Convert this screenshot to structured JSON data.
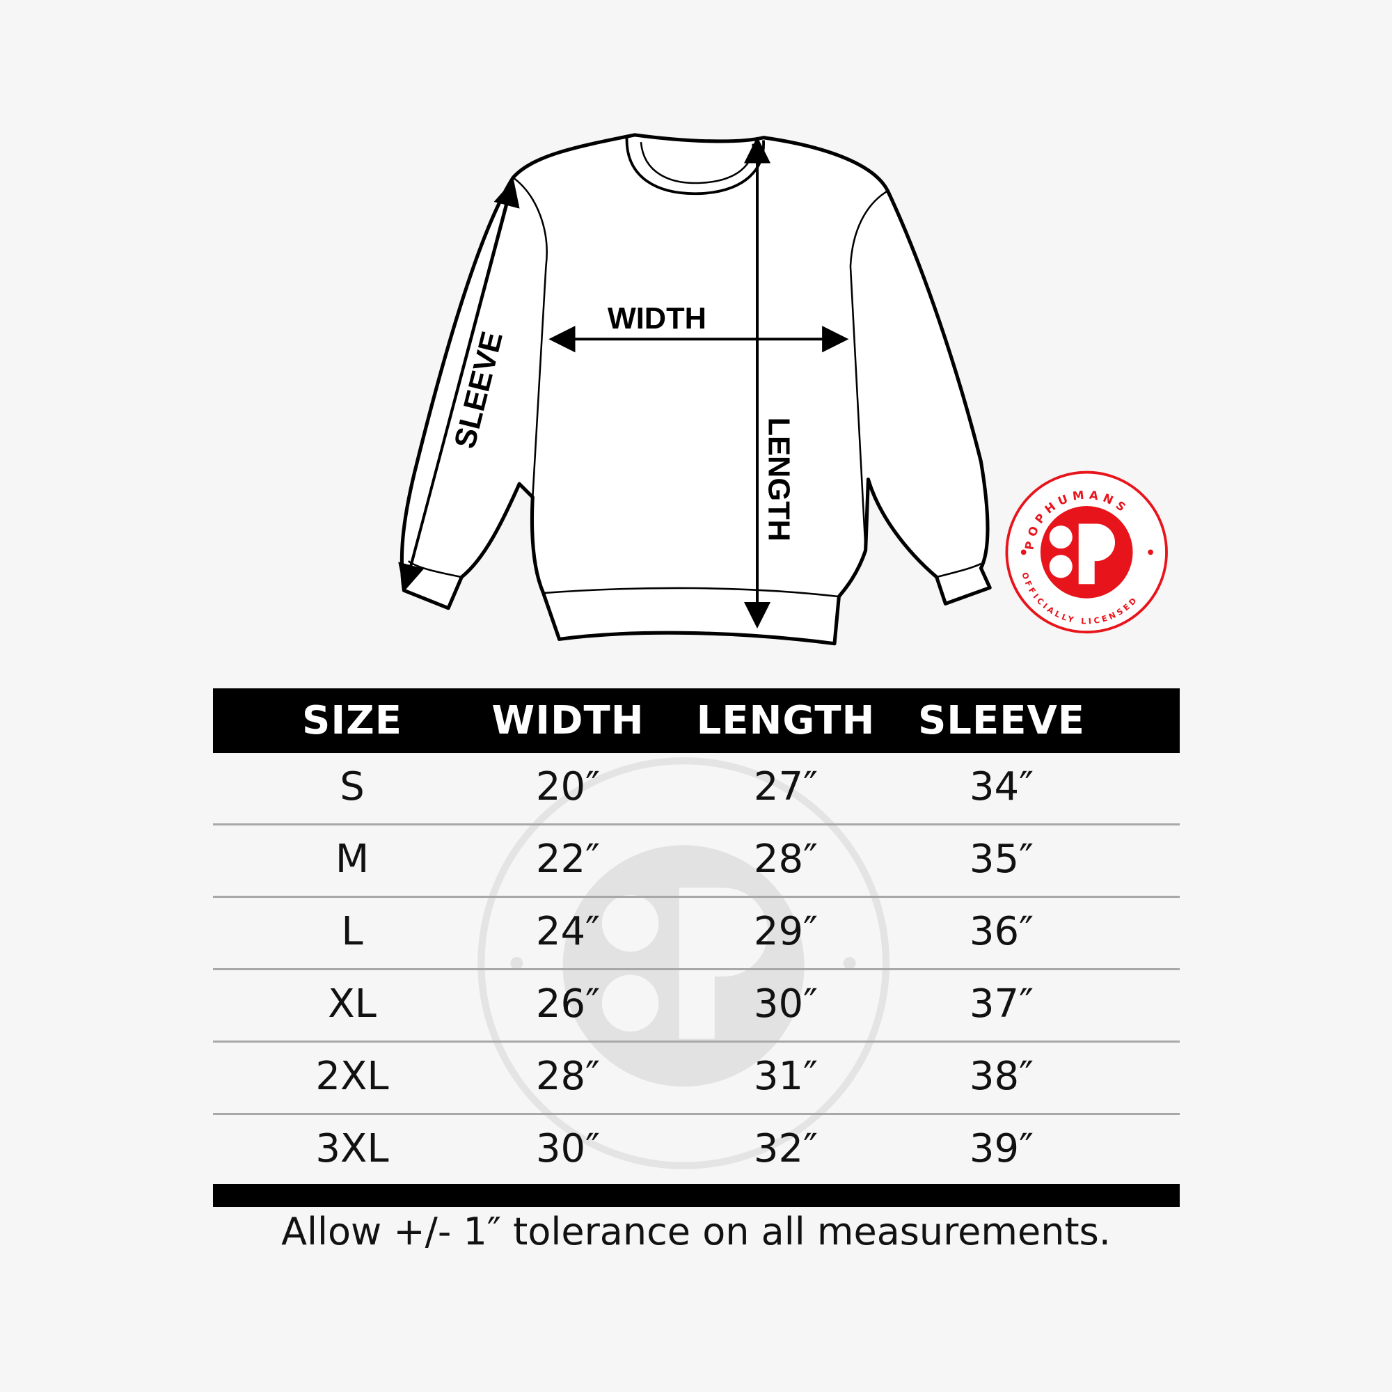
{
  "diagram": {
    "labels": {
      "width": "WIDTH",
      "length": "LENGTH",
      "sleeve": "SLEEVE"
    }
  },
  "badge": {
    "brand": "POPHUMANS",
    "tagline": "OFFICIALLY LICENSED",
    "color": "#e8141b"
  },
  "table": {
    "headers": [
      "SIZE",
      "WIDTH",
      "LENGTH",
      "SLEEVE"
    ],
    "rows": [
      [
        "S",
        "20″",
        "27″",
        "34″"
      ],
      [
        "M",
        "22″",
        "28″",
        "35″"
      ],
      [
        "L",
        "24″",
        "29″",
        "36″"
      ],
      [
        "XL",
        "26″",
        "30″",
        "37″"
      ],
      [
        "2XL",
        "28″",
        "31″",
        "38″"
      ],
      [
        "3XL",
        "30″",
        "32″",
        "39″"
      ]
    ]
  },
  "note": "Allow +/- 1″ tolerance on all measurements."
}
